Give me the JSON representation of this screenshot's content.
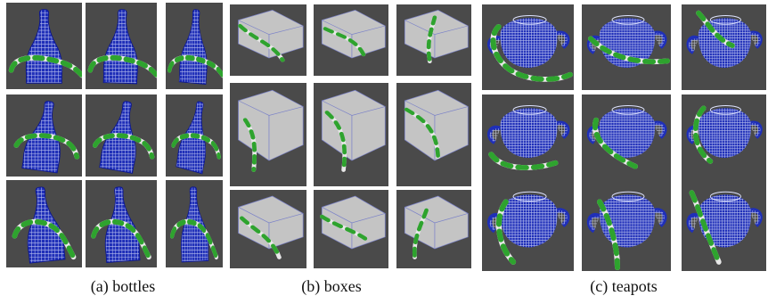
{
  "figure": {
    "colors": {
      "tile_background": "#4a4a4a",
      "mesh_blue": "#1f2fb8",
      "box_fill": "#c4c4c4",
      "box_edge": "#7b82c8",
      "rope_green": "#2ea32e",
      "rope_white": "#e8e8e8"
    },
    "panels": [
      {
        "id": "a",
        "object": "bottle",
        "caption": "(a) bottles"
      },
      {
        "id": "b",
        "object": "box",
        "caption": "(b) boxes"
      },
      {
        "id": "c",
        "object": "teapot",
        "caption": "(c) teapots"
      }
    ]
  }
}
